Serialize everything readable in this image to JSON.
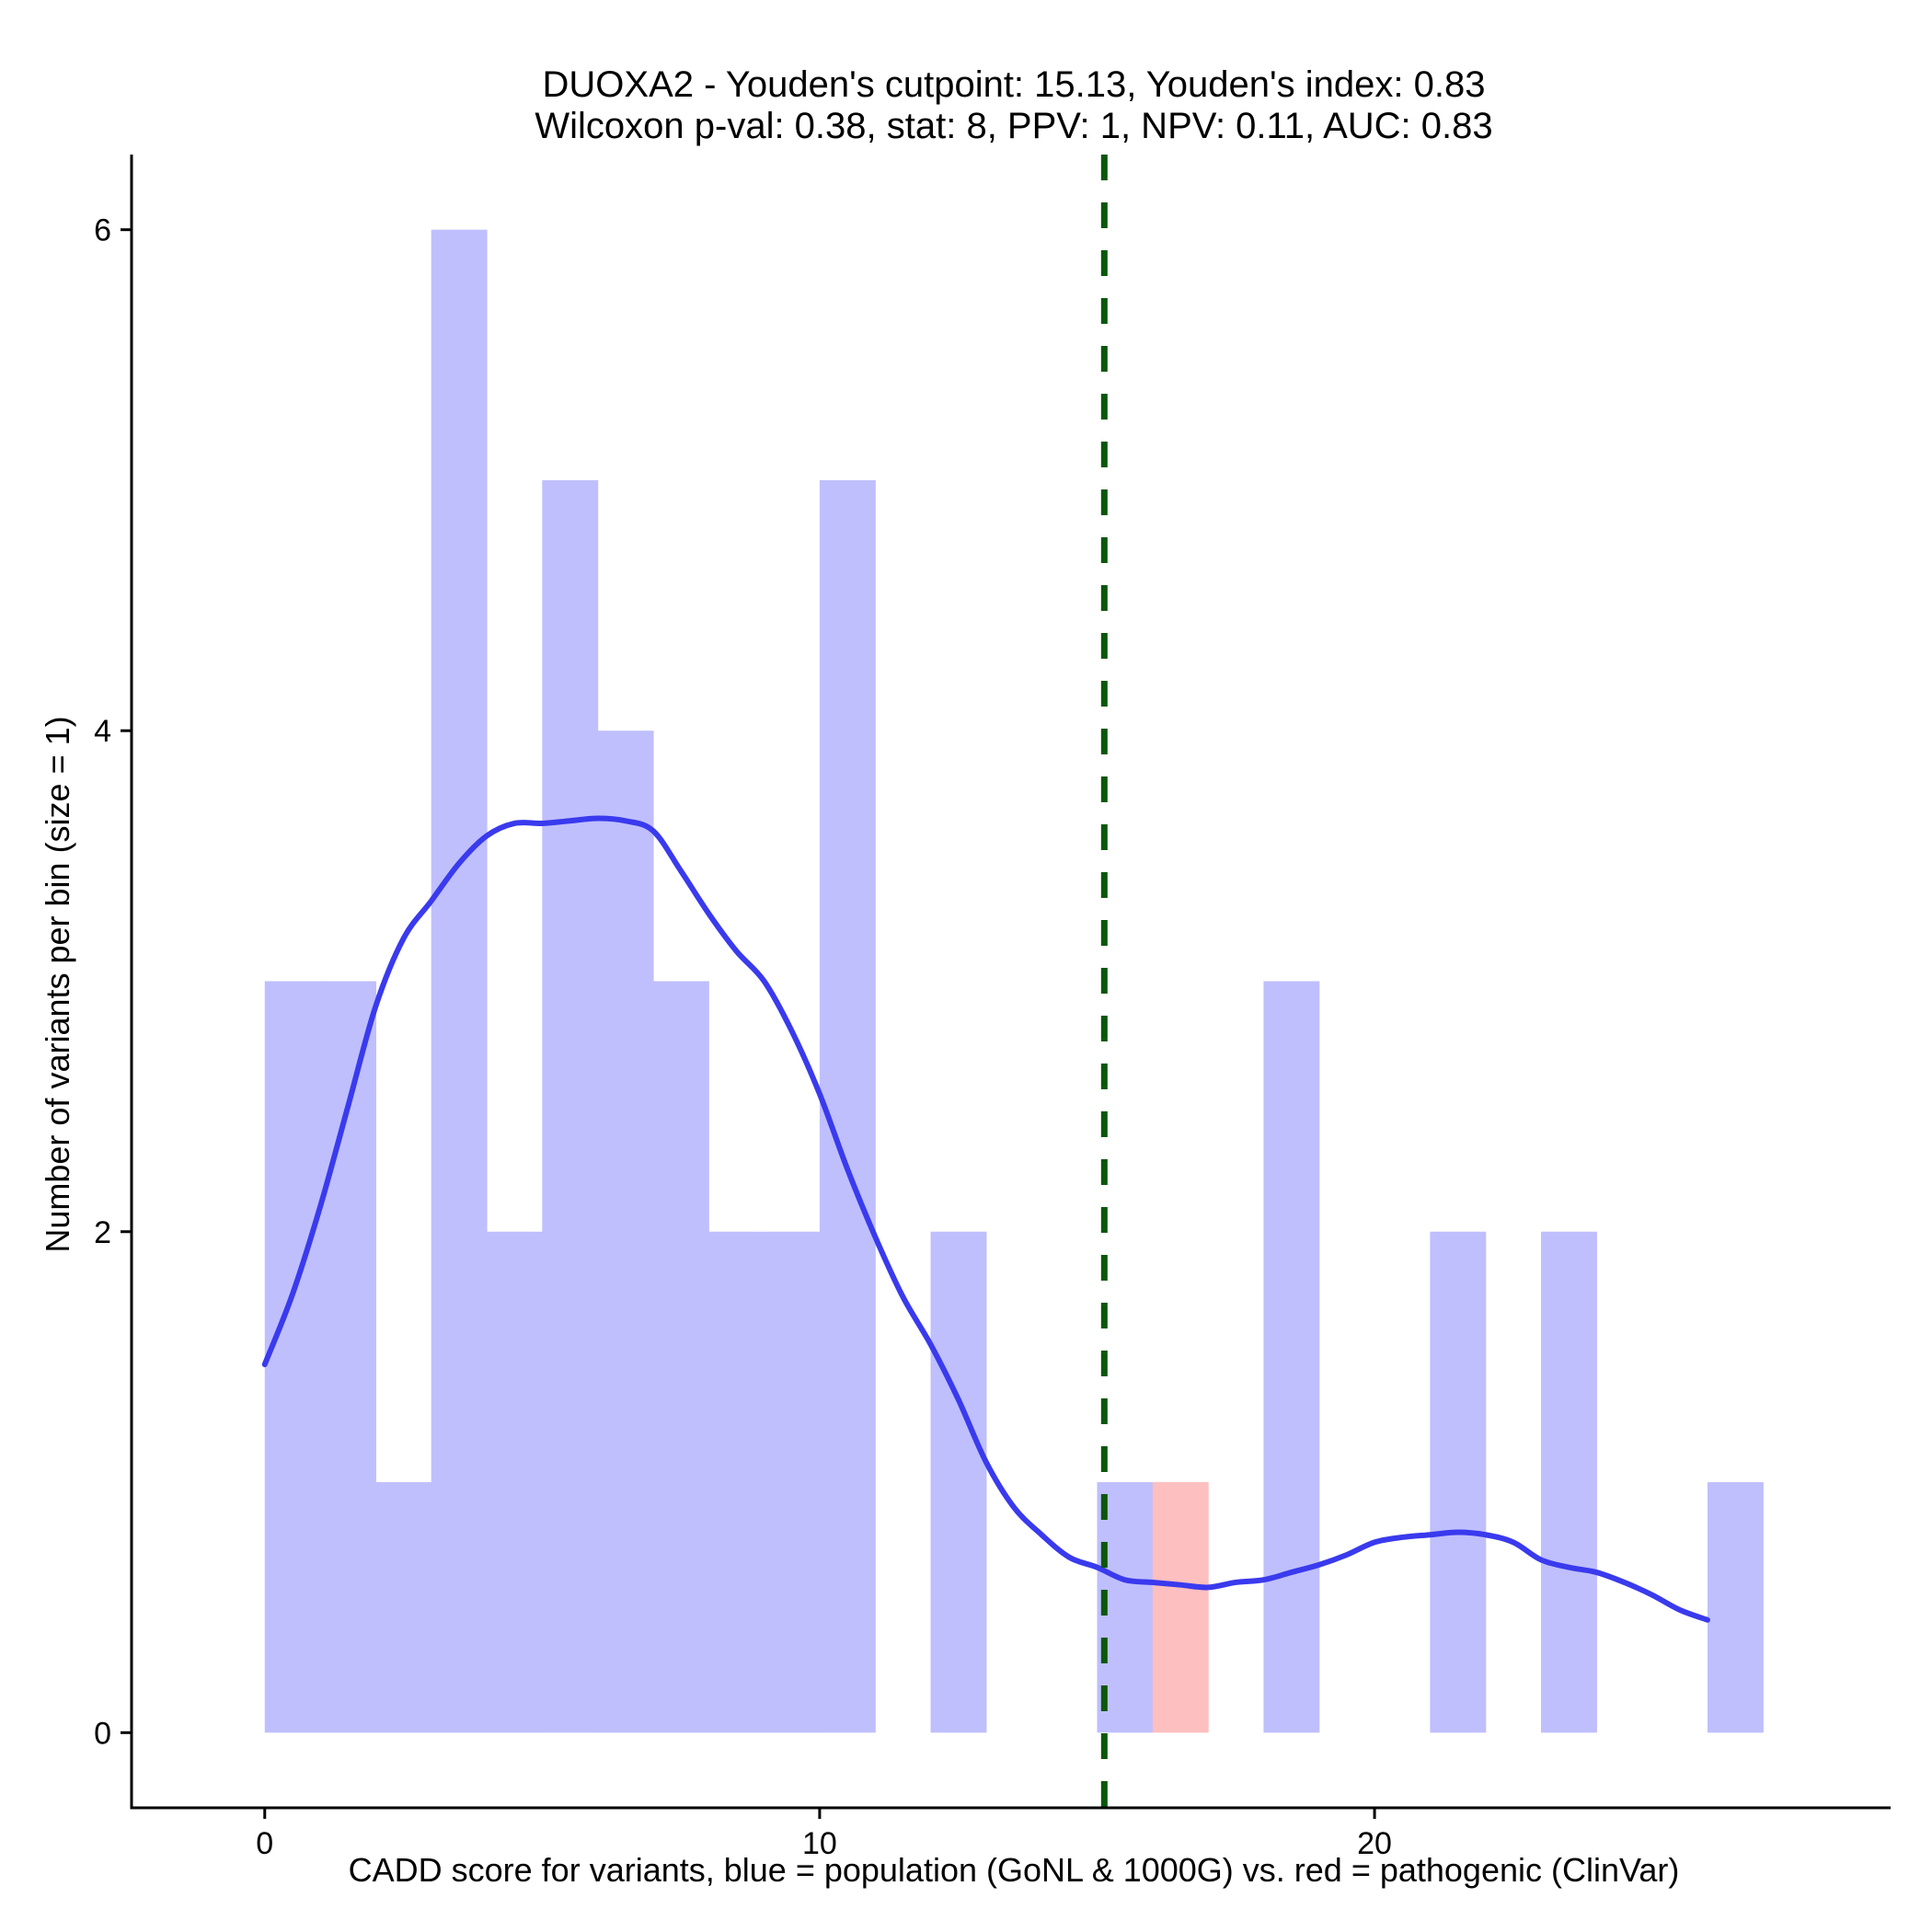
{
  "chart_data": {
    "type": "bar",
    "title": "DUOXA2 - Youden's cutpoint: 15.13, Youden's index: 0.83",
    "subtitle": "Wilcoxon p-val: 0.38, stat: 8, PPV: 1, NPV: 0.11, AUC: 0.83",
    "xlabel": "CADD score for variants, blue = population (GoNL & 1000G) vs. red = pathogenic (ClinVar)",
    "ylabel": "Number of variants per bin (size = 1)",
    "xlim": [
      -2.4,
      29.3
    ],
    "ylim": [
      -0.3,
      6.3
    ],
    "x_ticks": [
      0,
      10,
      20
    ],
    "y_ticks": [
      0,
      2,
      4,
      6
    ],
    "bin_width": 1,
    "series": [
      {
        "name": "population (GoNL & 1000G)",
        "color": "#bfbffd",
        "bins": [
          {
            "start": 0,
            "count": 3
          },
          {
            "start": 1,
            "count": 3
          },
          {
            "start": 2,
            "count": 1
          },
          {
            "start": 3,
            "count": 6
          },
          {
            "start": 4,
            "count": 2
          },
          {
            "start": 5,
            "count": 5
          },
          {
            "start": 6,
            "count": 4
          },
          {
            "start": 7,
            "count": 3
          },
          {
            "start": 8,
            "count": 2
          },
          {
            "start": 9,
            "count": 2
          },
          {
            "start": 10,
            "count": 5
          },
          {
            "start": 12,
            "count": 2
          },
          {
            "start": 15,
            "count": 1
          },
          {
            "start": 18,
            "count": 3
          },
          {
            "start": 21,
            "count": 2
          },
          {
            "start": 23,
            "count": 2
          },
          {
            "start": 26,
            "count": 1
          }
        ]
      },
      {
        "name": "pathogenic (ClinVar)",
        "color": "#fdbfbf",
        "bins": [
          {
            "start": 16,
            "count": 1
          }
        ]
      }
    ],
    "density_curve": {
      "name": "population density",
      "color": "#3a3aee",
      "x": [
        0,
        0.5,
        1,
        1.5,
        2,
        2.5,
        3,
        3.5,
        4,
        4.5,
        5,
        5.5,
        6,
        6.5,
        7,
        7.5,
        8,
        8.5,
        9,
        9.5,
        10,
        10.5,
        11,
        11.5,
        12,
        12.5,
        13,
        13.5,
        14,
        14.5,
        15,
        15.5,
        16,
        16.5,
        17,
        17.5,
        18,
        18.5,
        19,
        19.5,
        20,
        20.5,
        21,
        21.5,
        22,
        22.5,
        23,
        23.5,
        24,
        24.5,
        25,
        25.5,
        26
      ],
      "y": [
        1.47,
        1.75,
        2.1,
        2.5,
        2.9,
        3.17,
        3.32,
        3.47,
        3.58,
        3.63,
        3.63,
        3.64,
        3.65,
        3.64,
        3.6,
        3.44,
        3.27,
        3.12,
        3.0,
        2.8,
        2.55,
        2.25,
        1.98,
        1.74,
        1.55,
        1.33,
        1.08,
        0.9,
        0.79,
        0.7,
        0.66,
        0.61,
        0.6,
        0.59,
        0.58,
        0.6,
        0.61,
        0.64,
        0.67,
        0.71,
        0.76,
        0.78,
        0.79,
        0.8,
        0.79,
        0.76,
        0.69,
        0.66,
        0.64,
        0.6,
        0.55,
        0.49,
        0.45
      ]
    },
    "cutpoint": {
      "value": 15.13,
      "color": "#0b570b",
      "style": "dashed"
    },
    "grid": false,
    "legend": "none"
  }
}
